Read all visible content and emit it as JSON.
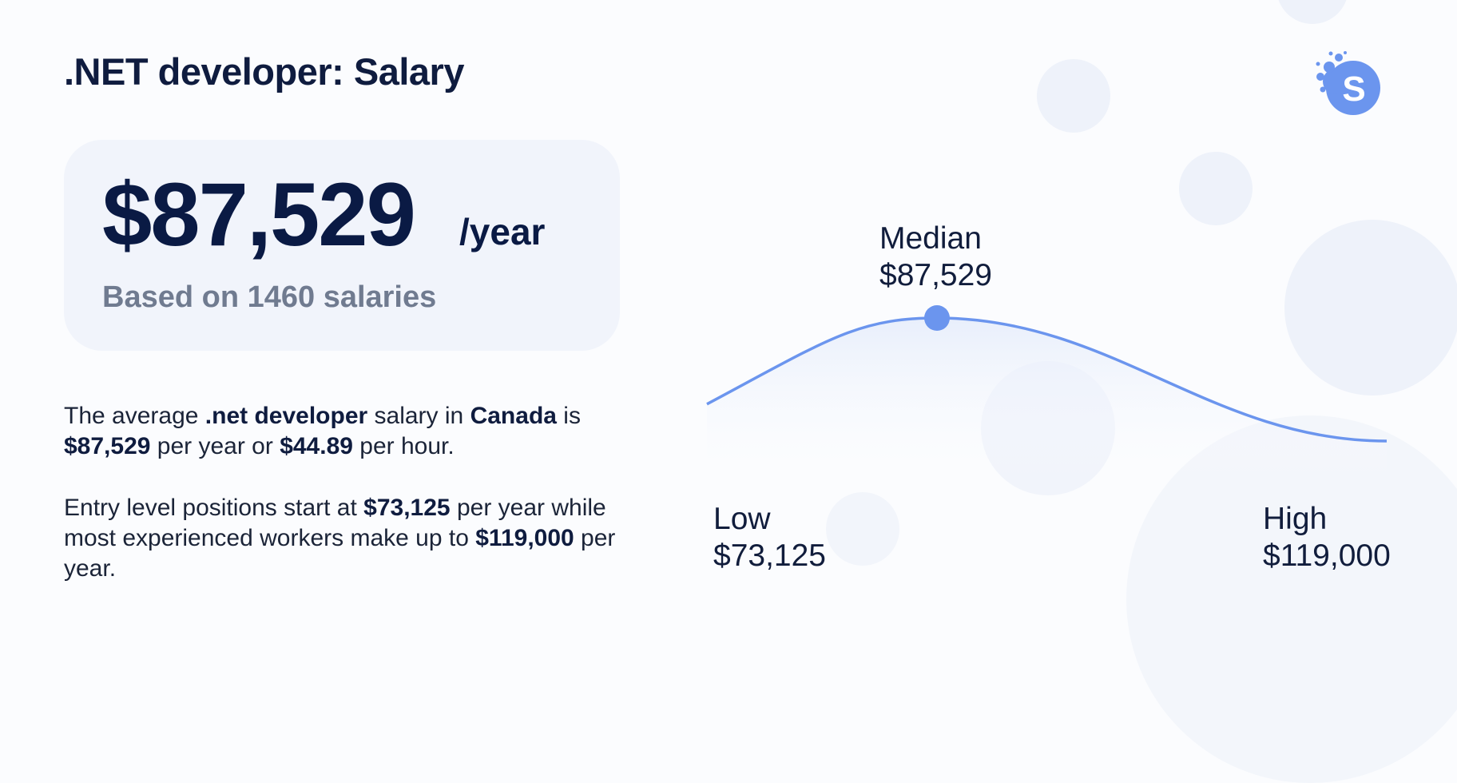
{
  "header": {
    "title": ".NET developer: Salary"
  },
  "salary_card": {
    "amount": "$87,529",
    "unit": "/year",
    "based_on": "Based on 1460 salaries"
  },
  "description": {
    "p1": [
      {
        "text": "The average ",
        "bold": false
      },
      {
        "text": ".net developer",
        "bold": true
      },
      {
        "text": " salary in ",
        "bold": false
      },
      {
        "text": "Canada",
        "bold": true
      },
      {
        "text": " is ",
        "bold": false
      },
      {
        "text": "$87,529",
        "bold": true
      },
      {
        "text": " per year or ",
        "bold": false
      },
      {
        "text": "$44.89",
        "bold": true
      },
      {
        "text": " per hour.",
        "bold": false
      }
    ],
    "p2": [
      {
        "text": "Entry level positions start at ",
        "bold": false
      },
      {
        "text": "$73,125",
        "bold": true
      },
      {
        "text": " per year while most experienced workers make up to ",
        "bold": false
      },
      {
        "text": "$119,000",
        "bold": true
      },
      {
        "text": " per year.",
        "bold": false
      }
    ]
  },
  "colors": {
    "accent": "#6b95ee",
    "curve": "#6b95ee",
    "text_dark": "#0f1c3f",
    "card_bg": "#f1f4fb",
    "muted": "#707b90"
  },
  "logo": {
    "icon": "logo-icon",
    "letter": "S"
  },
  "chart_data": {
    "type": "line",
    "x": [
      73125,
      87529,
      119000
    ],
    "series": [
      {
        "values": [
          0.3,
          1.0,
          0.0
        ]
      }
    ],
    "points": [
      {
        "name": "Low",
        "value": "$73,125"
      },
      {
        "name": "Median",
        "value": "$87,529"
      },
      {
        "name": "High",
        "value": "$119,000"
      }
    ],
    "grid": false
  }
}
